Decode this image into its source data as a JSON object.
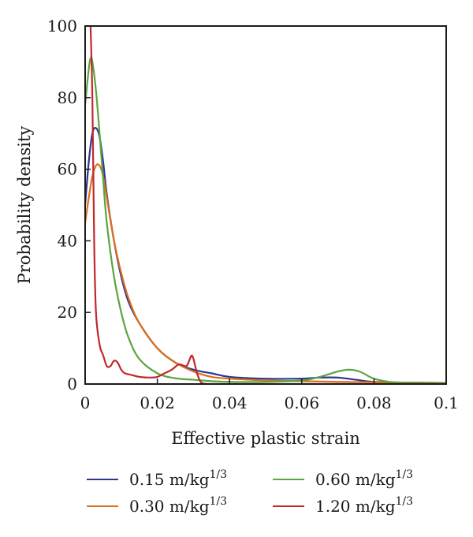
{
  "chart_data": {
    "type": "line",
    "title": "",
    "xlabel": "Effective plastic strain",
    "ylabel": "Probability density",
    "xlim": [
      0,
      0.1
    ],
    "ylim": [
      0,
      100
    ],
    "xticks": [
      0,
      0.02,
      0.04,
      0.06,
      0.08,
      0.1
    ],
    "xtick_labels": [
      "0",
      "0.02",
      "0.04",
      "0.06",
      "0.08",
      "0.1"
    ],
    "yticks": [
      0,
      20,
      40,
      60,
      80,
      100
    ],
    "ytick_labels": [
      "0",
      "20",
      "40",
      "60",
      "80",
      "100"
    ],
    "grid": false,
    "legend_position": "bottom",
    "series": [
      {
        "name": "0.15 m/kg",
        "name_sup": "1/3",
        "color": "#2e3592",
        "x": [
          0,
          0.001,
          0.002,
          0.003,
          0.004,
          0.005,
          0.006,
          0.008,
          0.01,
          0.012,
          0.015,
          0.02,
          0.025,
          0.03,
          0.035,
          0.04,
          0.05,
          0.06,
          0.065,
          0.07,
          0.075,
          0.08,
          0.09,
          0.1
        ],
        "y": [
          50,
          62,
          70,
          71.5,
          69,
          62,
          53,
          40,
          30,
          23,
          17,
          10,
          6,
          4,
          3,
          2,
          1.5,
          1.5,
          1.8,
          1.8,
          1.2,
          0.6,
          0.4,
          0.3
        ]
      },
      {
        "name": "0.30 m/kg",
        "name_sup": "1/3",
        "color": "#d9701c",
        "x": [
          0,
          0.001,
          0.002,
          0.003,
          0.004,
          0.005,
          0.006,
          0.008,
          0.01,
          0.012,
          0.015,
          0.02,
          0.025,
          0.03,
          0.035,
          0.04,
          0.05,
          0.06,
          0.07,
          0.08,
          0.09,
          0.1
        ],
        "y": [
          45,
          52,
          58,
          61,
          61,
          58,
          52,
          40,
          31,
          24,
          17,
          10,
          6,
          3.5,
          2,
          1.5,
          1,
          0.8,
          0.6,
          0.5,
          0.4,
          0.3
        ]
      },
      {
        "name": "0.60 m/kg",
        "name_sup": "1/3",
        "color": "#5aa53e",
        "x": [
          0,
          0.001,
          0.0015,
          0.002,
          0.003,
          0.004,
          0.005,
          0.006,
          0.008,
          0.01,
          0.012,
          0.015,
          0.02,
          0.025,
          0.03,
          0.035,
          0.04,
          0.05,
          0.06,
          0.065,
          0.07,
          0.073,
          0.076,
          0.08,
          0.085,
          0.09,
          0.1
        ],
        "y": [
          78,
          88,
          91,
          90,
          82,
          70,
          57,
          45,
          30,
          20,
          13,
          7,
          3,
          1.6,
          1.2,
          0.8,
          0.6,
          0.6,
          1,
          2,
          3.5,
          4,
          3.5,
          1.5,
          0.5,
          0.3,
          0.2
        ]
      },
      {
        "name": "1.20 m/kg",
        "name_sup": "1/3",
        "color": "#c0282b",
        "x": [
          0.0015,
          0.002,
          0.0025,
          0.003,
          0.004,
          0.005,
          0.006,
          0.007,
          0.008,
          0.009,
          0.01,
          0.011,
          0.013,
          0.015,
          0.018,
          0.02,
          0.022,
          0.024,
          0.026,
          0.028,
          0.029,
          0.0295,
          0.03,
          0.031,
          0.032,
          0.033,
          0.035,
          0.04,
          0.05,
          0.06,
          0.07,
          0.08,
          0.09,
          0.1
        ],
        "y": [
          100,
          80,
          40,
          20,
          11,
          8,
          5,
          5,
          6.5,
          6,
          4,
          3,
          2.5,
          2,
          1.8,
          2,
          3,
          4,
          5.5,
          5,
          7,
          8,
          7,
          3,
          0.6,
          0.1,
          0,
          0,
          0,
          0,
          0,
          0,
          0,
          0
        ]
      }
    ]
  }
}
